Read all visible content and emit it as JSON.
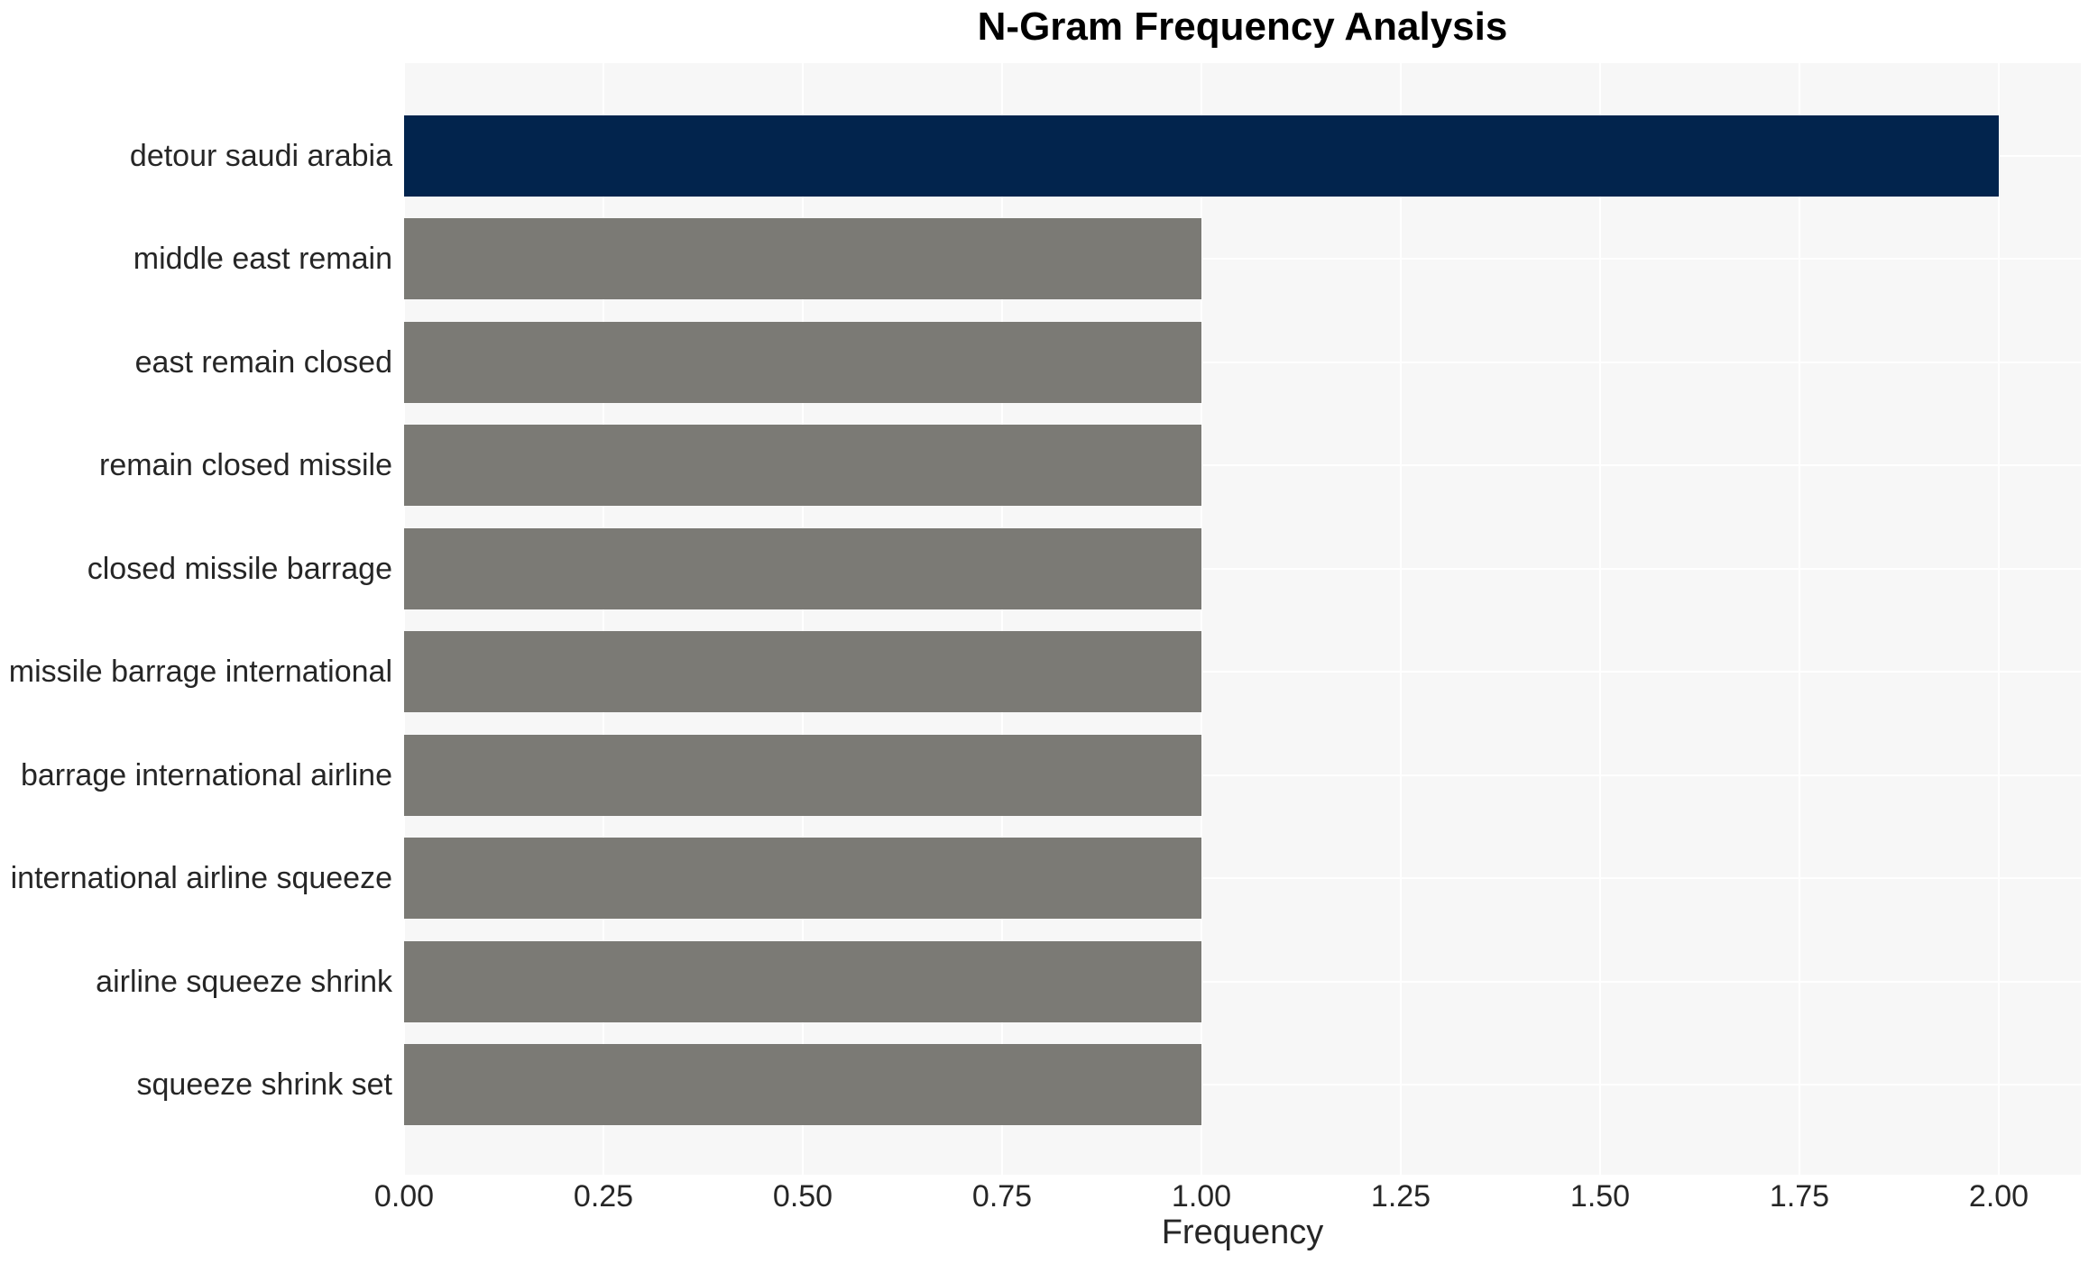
{
  "chart_data": {
    "type": "bar",
    "orientation": "horizontal",
    "title": "N-Gram Frequency Analysis",
    "xlabel": "Frequency",
    "ylabel": "",
    "categories": [
      "detour saudi arabia",
      "middle east remain",
      "east remain closed",
      "remain closed missile",
      "closed missile barrage",
      "missile barrage international",
      "barrage international airline",
      "international airline squeeze",
      "airline squeeze shrink",
      "squeeze shrink set"
    ],
    "values": [
      2.0,
      1.0,
      1.0,
      1.0,
      1.0,
      1.0,
      1.0,
      1.0,
      1.0,
      1.0
    ],
    "xtick_labels": [
      "0.00",
      "0.25",
      "0.50",
      "0.75",
      "1.00",
      "1.25",
      "1.50",
      "1.75",
      "2.00"
    ],
    "xtick_values": [
      0.0,
      0.25,
      0.5,
      0.75,
      1.0,
      1.25,
      1.5,
      1.75,
      2.0
    ],
    "xlim": [
      0,
      2.1
    ],
    "grid": true,
    "legend": false,
    "colors": {
      "highlight_bar": "#02244d",
      "default_bar": "#7b7a75",
      "panel_background": "#f7f7f7",
      "gridline": "#ffffff",
      "tick_text": "#262626",
      "title_text": "#000000"
    }
  }
}
